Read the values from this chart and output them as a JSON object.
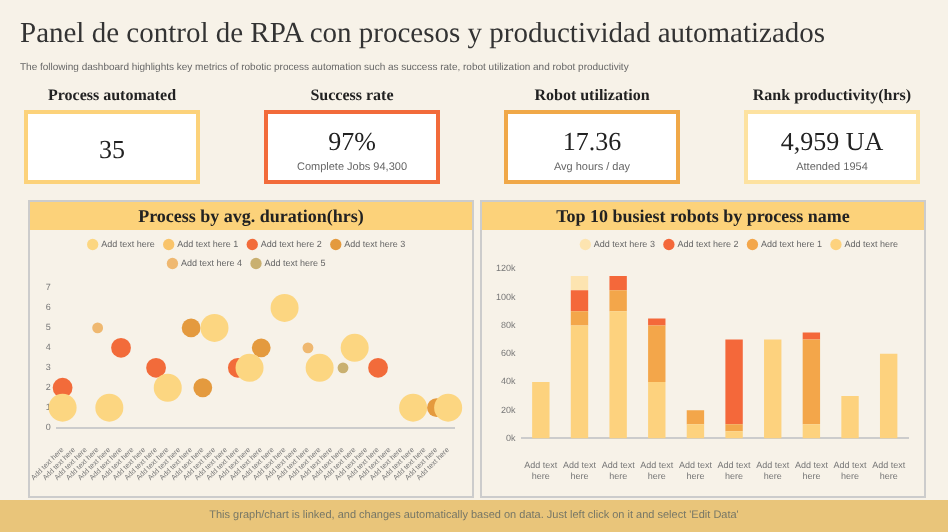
{
  "chart_data": [
    {
      "type": "other",
      "title": "Panel de control de RPA con procesos y productividad automatizados",
      "subtitle": "The following dashboard highlights key metrics of robotic process automation such as success rate, robot utilization and robot productivity",
      "categories": [
        "Process automated",
        "Success rate",
        "Robot utilization",
        "Rank productivity(hrs)"
      ],
      "value_labels": [
        "35",
        "97%",
        "17.36",
        "4,959 UA"
      ],
      "colors": [
        "#fcd27a",
        "#f26b3a",
        "#f0a848",
        "#fde2a0"
      ],
      "annotations": [
        "Complete Jobs 94,300",
        "Avg hours / day",
        "Attended 1954",
        "This graph/chart is linked, and changes automatically based on data. Just left click on it and select 'Edit Data'"
      ]
    },
    {
      "type": "bubble",
      "title": "Process by avg. duration(hrs)",
      "categories": [
        "Add text here",
        "Add text here",
        "Add text here",
        "Add text here",
        "Add text here",
        "Add text here",
        "Add text here",
        "Add text here",
        "Add text here",
        "Add text here",
        "Add text here",
        "Add text here",
        "Add text here",
        "Add text here",
        "Add text here",
        "Add text here",
        "Add text here",
        "Add text here",
        "Add text here",
        "Add text here",
        "Add text here",
        "Add text here",
        "Add text here",
        "Add text here",
        "Add text here",
        "Add text here",
        "Add text here",
        "Add text here",
        "Add text here",
        "Add text here",
        "Add text here",
        "Add text here",
        "Add text here",
        "Add text here"
      ],
      "ylim": [
        0,
        7
      ],
      "yticks": [
        0,
        1,
        2,
        3,
        4,
        5,
        6,
        7
      ],
      "legend": "top",
      "series": [
        {
          "name": "Add text here",
          "color": "#fcd681",
          "values": [
            1,
            null,
            null,
            null,
            1,
            null,
            null,
            null,
            null,
            2,
            null,
            null,
            null,
            5,
            null,
            null,
            3,
            null,
            null,
            6,
            null,
            null,
            3,
            null,
            null,
            4,
            null,
            null,
            null,
            null,
            1,
            null,
            null,
            1
          ],
          "sizes": [
            1,
            null,
            null,
            null,
            1,
            null,
            null,
            null,
            null,
            1,
            null,
            null,
            null,
            1,
            null,
            null,
            1,
            null,
            null,
            1,
            null,
            null,
            1,
            null,
            null,
            1,
            null,
            null,
            null,
            null,
            1,
            null,
            null,
            1
          ]
        },
        {
          "name": "Add text here 1",
          "color": "#f9c46a",
          "values": [
            null,
            null,
            null,
            null,
            null,
            null,
            null,
            null,
            null,
            null,
            null,
            null,
            null,
            null,
            null,
            null,
            null,
            null,
            null,
            null,
            null,
            null,
            null,
            null,
            null,
            null,
            null,
            null,
            null,
            null,
            null,
            null,
            null,
            null
          ],
          "sizes": [
            null,
            null,
            null,
            null,
            null,
            null,
            null,
            null,
            null,
            null,
            null,
            null,
            null,
            null,
            null,
            null,
            null,
            null,
            null,
            null,
            null,
            null,
            null,
            null,
            null,
            null,
            null,
            null,
            null,
            null,
            null,
            null,
            null,
            null
          ]
        },
        {
          "name": "Add text here 2",
          "color": "#f26b3a",
          "values": [
            2,
            null,
            null,
            null,
            null,
            4,
            null,
            null,
            3,
            null,
            null,
            null,
            null,
            null,
            null,
            3,
            null,
            null,
            null,
            null,
            null,
            null,
            null,
            null,
            null,
            null,
            null,
            3,
            null,
            null,
            null,
            null,
            null,
            null
          ],
          "sizes": [
            0.5,
            null,
            null,
            null,
            null,
            0.5,
            null,
            null,
            0.5,
            null,
            null,
            null,
            null,
            null,
            null,
            0.5,
            null,
            null,
            null,
            null,
            null,
            null,
            null,
            null,
            null,
            null,
            null,
            0.5,
            null,
            null,
            null,
            null,
            null,
            null
          ]
        },
        {
          "name": "Add text here 3",
          "color": "#e49a3e",
          "values": [
            null,
            null,
            null,
            null,
            null,
            null,
            null,
            null,
            null,
            null,
            null,
            5,
            2,
            null,
            null,
            null,
            null,
            4,
            null,
            null,
            null,
            null,
            null,
            null,
            null,
            null,
            null,
            null,
            null,
            null,
            null,
            null,
            1,
            null
          ],
          "sizes": [
            null,
            null,
            null,
            null,
            null,
            null,
            null,
            null,
            null,
            null,
            null,
            0.45,
            0.45,
            null,
            null,
            null,
            null,
            0.45,
            null,
            null,
            null,
            null,
            null,
            null,
            null,
            null,
            null,
            null,
            null,
            null,
            null,
            null,
            0.45,
            null
          ]
        },
        {
          "name": "Add text here 4",
          "color": "#efb870",
          "values": [
            null,
            null,
            null,
            5,
            null,
            null,
            null,
            null,
            null,
            null,
            null,
            null,
            null,
            null,
            null,
            null,
            null,
            null,
            null,
            null,
            null,
            4,
            null,
            null,
            null,
            null,
            null,
            null,
            null,
            null,
            null,
            null,
            null,
            null
          ],
          "sizes": [
            null,
            null,
            null,
            0.15,
            null,
            null,
            null,
            null,
            null,
            null,
            null,
            null,
            null,
            null,
            null,
            null,
            null,
            null,
            null,
            null,
            null,
            0.15,
            null,
            null,
            null,
            null,
            null,
            null,
            null,
            null,
            null,
            null,
            null,
            null
          ]
        },
        {
          "name": "Add text here 5",
          "color": "#c9b070",
          "values": [
            null,
            null,
            null,
            null,
            null,
            null,
            null,
            null,
            null,
            null,
            null,
            null,
            null,
            null,
            null,
            null,
            null,
            null,
            null,
            null,
            null,
            null,
            null,
            null,
            3,
            null,
            null,
            null,
            null,
            null,
            null,
            null,
            null,
            null
          ],
          "sizes": [
            null,
            null,
            null,
            null,
            null,
            null,
            null,
            null,
            null,
            null,
            null,
            null,
            null,
            null,
            null,
            null,
            null,
            null,
            null,
            null,
            null,
            null,
            null,
            null,
            0.15,
            null,
            null,
            null,
            null,
            null,
            null,
            null,
            null,
            null
          ]
        }
      ]
    },
    {
      "type": "bar",
      "stacked": true,
      "title": "Top 10 busiest robots by process name",
      "categories": [
        "Add text here",
        "Add text here",
        "Add text here",
        "Add text here",
        "Add text here",
        "Add text here",
        "Add text here",
        "Add text here",
        "Add text here",
        "Add text here"
      ],
      "ylim": [
        0,
        120000
      ],
      "yticks": [
        {
          "value": 0,
          "label": "0k"
        },
        {
          "value": 20000,
          "label": "20k"
        },
        {
          "value": 40000,
          "label": "40k"
        },
        {
          "value": 60000,
          "label": "60k"
        },
        {
          "value": 80000,
          "label": "80k"
        },
        {
          "value": 100000,
          "label": "100k"
        },
        {
          "value": 120000,
          "label": "120k"
        }
      ],
      "legend": "top right",
      "series": [
        {
          "name": "Add text here",
          "color": "#fdd27e",
          "values": [
            40000,
            80000,
            90000,
            40000,
            10000,
            5000,
            70000,
            10000,
            30000,
            60000
          ]
        },
        {
          "name": "Add text here 1",
          "color": "#f3a64a",
          "values": [
            null,
            10000,
            15000,
            40000,
            10000,
            5000,
            null,
            60000,
            null,
            null
          ]
        },
        {
          "name": "Add text here 2",
          "color": "#f4683a",
          "values": [
            null,
            15000,
            10000,
            5000,
            null,
            60000,
            null,
            5000,
            null,
            null
          ]
        },
        {
          "name": "Add text here 3",
          "color": "#fde4b0",
          "values": [
            null,
            10000,
            null,
            null,
            null,
            null,
            null,
            null,
            null,
            null
          ]
        }
      ]
    }
  ]
}
